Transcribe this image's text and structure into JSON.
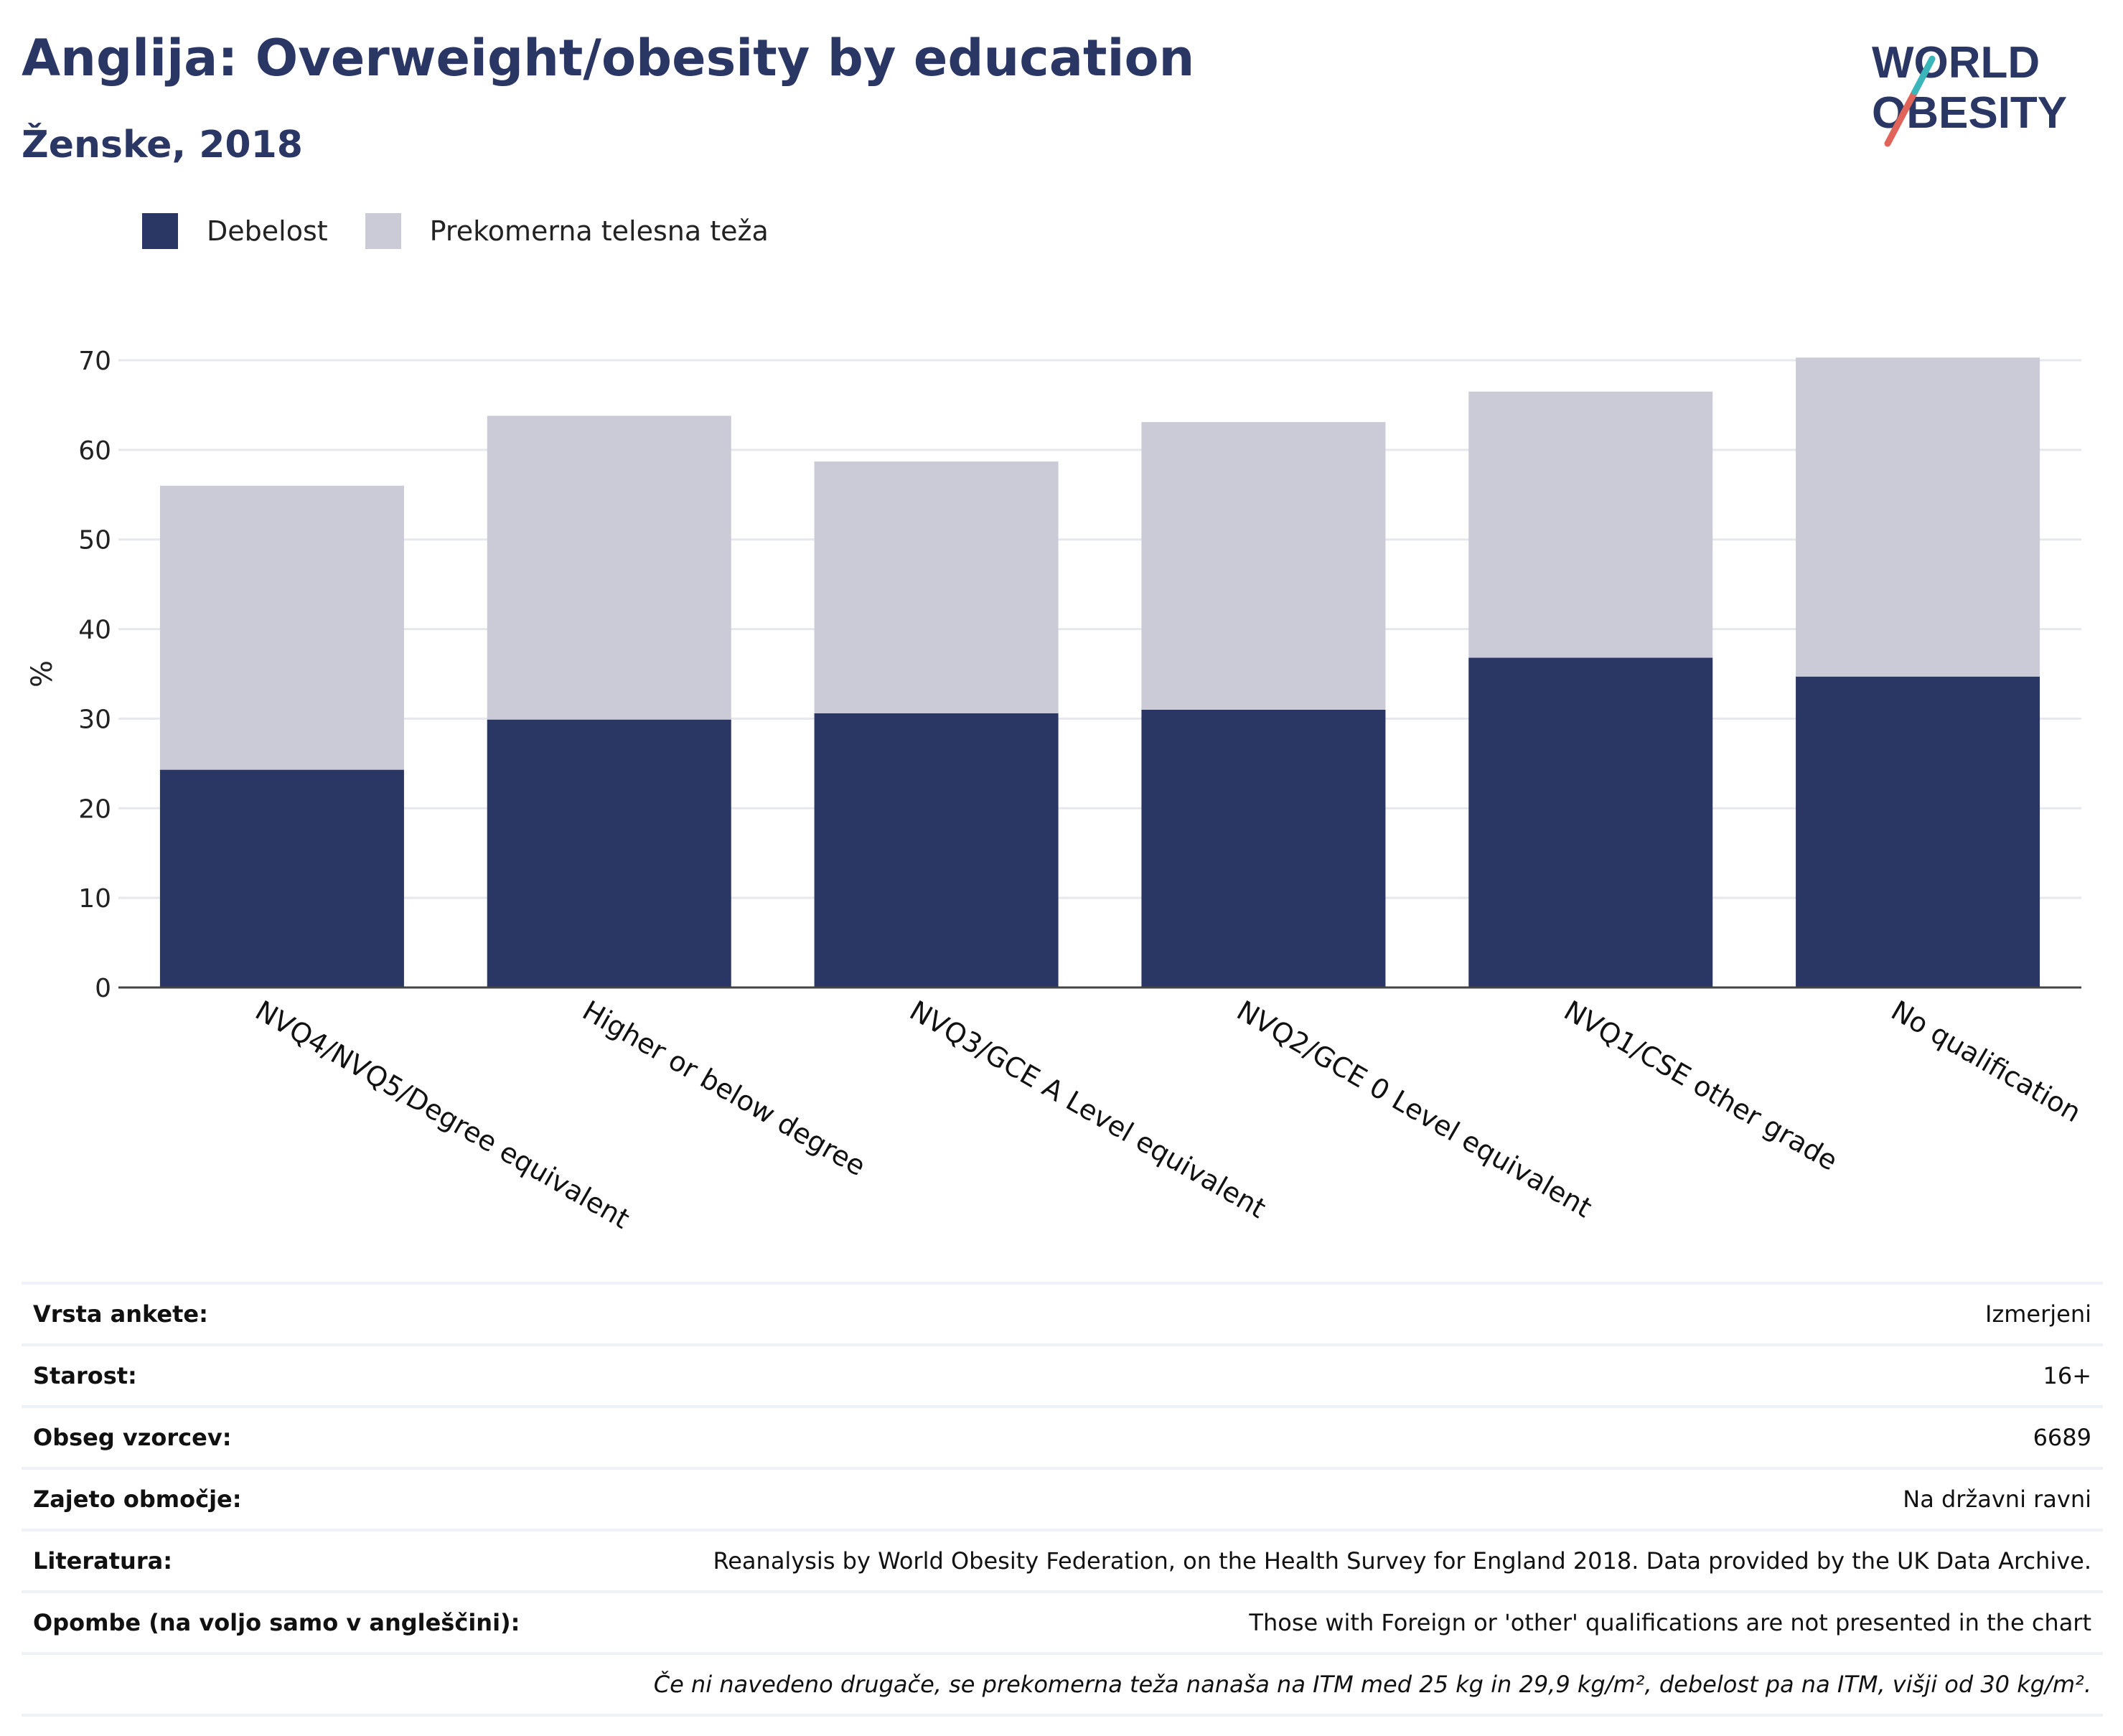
{
  "header": {
    "title": "Anglija: Overweight/obesity by education",
    "subtitle": "Ženske, 2018"
  },
  "logo": {
    "line1": "WORLD",
    "line2": "OBESITY"
  },
  "colors": {
    "obesity": "#2a3663",
    "overweight": "#cacbd7",
    "text": "#2a3663",
    "grid": "#e6e8ee",
    "accent_red": "#e0645a",
    "accent_teal": "#3ab5b9"
  },
  "legend": [
    {
      "label": "Debelost",
      "color": "#2a3663"
    },
    {
      "label": "Prekomerna telesna teža",
      "color": "#cacbd7"
    }
  ],
  "chart_data": {
    "type": "bar",
    "stacked": true,
    "ylabel": "%",
    "ylim": [
      0,
      70
    ],
    "yticks": [
      0,
      10,
      20,
      30,
      40,
      50,
      60,
      70
    ],
    "grid": true,
    "legend_position": "top-left",
    "categories": [
      "NVQ4/NVQ5/Degree equivalent",
      "Higher or below degree",
      "NVQ3/GCE A Level equivalent",
      "NVQ2/GCE 0 Level equivalent",
      "NVQ1/CSE other grade",
      "No qualification"
    ],
    "series": [
      {
        "name": "Debelost",
        "values": [
          24.3,
          29.9,
          30.6,
          31.0,
          36.8,
          34.7
        ]
      },
      {
        "name": "Prekomerna telesna teža",
        "values": [
          31.7,
          33.9,
          28.1,
          32.1,
          29.7,
          35.6
        ]
      }
    ]
  },
  "meta": [
    {
      "key": "Vrsta ankete:",
      "value": "Izmerjeni"
    },
    {
      "key": "Starost:",
      "value": "16+"
    },
    {
      "key": "Obseg vzorcev:",
      "value": "6689"
    },
    {
      "key": "Zajeto območje:",
      "value": "Na državni ravni"
    },
    {
      "key": "Literatura:",
      "value": "Reanalysis by World Obesity Federation, on the Health Survey for England 2018. Data provided by the UK Data Archive."
    },
    {
      "key": "Opombe (na voljo samo v angleščini):",
      "value": "Those with Foreign or 'other' qualifications are not presented in the chart"
    }
  ],
  "footnote": "Če ni navedeno drugače, se prekomerna teža nanaša na ITM med 25 kg in 29,9 kg/m², debelost pa na ITM, višji od 30 kg/m²."
}
